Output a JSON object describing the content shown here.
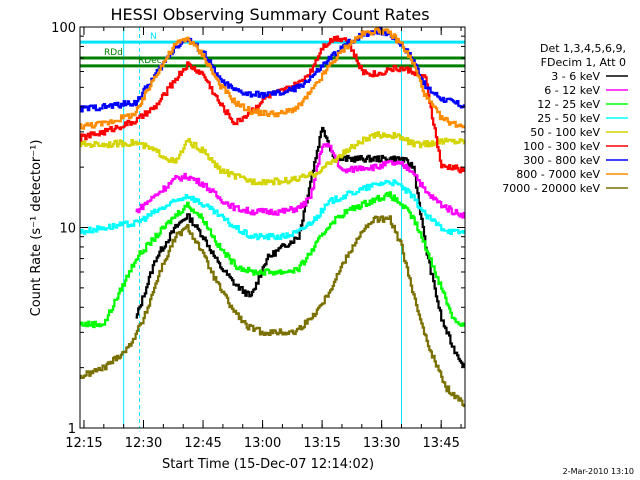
{
  "chart_data": {
    "type": "line",
    "title": "HESSI Observing Summary Count Rates",
    "xlabel": "Start Time (15-Dec-07 12:14:02)",
    "ylabel": "Count Rate (s⁻¹ detector⁻¹)",
    "y_scale": "log",
    "ylim": [
      1,
      100
    ],
    "xlim": [
      "12:14",
      "13:51"
    ],
    "x_ticks": [
      "12:15",
      "12:30",
      "12:45",
      "13:00",
      "13:15",
      "13:30",
      "13:45"
    ],
    "y_ticks": [
      "1",
      "10",
      "100"
    ],
    "grid": false,
    "legend_position": "right",
    "legend_title": [
      "Det 1,3,4,5,6,9,",
      "FDecim 1, Att 0"
    ],
    "series": [
      {
        "name": "3 - 6 keV",
        "color": "#000000",
        "x": [
          "12:28",
          "12:33",
          "12:38",
          "12:41",
          "12:45",
          "12:49",
          "12:53",
          "12:57",
          "13:01",
          "13:05",
          "13:09",
          "13:12",
          "13:15",
          "13:18",
          "13:21",
          "13:25",
          "13:29",
          "13:32",
          "13:35",
          "13:38",
          "13:41",
          "13:45",
          "13:48",
          "13:51"
        ],
        "values": [
          3.5,
          7.0,
          10.0,
          11.5,
          9.0,
          6.5,
          5.2,
          4.5,
          7.0,
          8.0,
          9.0,
          17.0,
          32.0,
          22.0,
          22.0,
          22.0,
          22.0,
          22.0,
          22.0,
          20.0,
          8.0,
          3.5,
          2.5,
          2.0
        ]
      },
      {
        "name": "6 - 12 keV",
        "color": "#ff00ff",
        "x": [
          "12:28",
          "12:33",
          "12:38",
          "12:41",
          "12:45",
          "12:49",
          "12:53",
          "12:57",
          "13:01",
          "13:05",
          "13:09",
          "13:12",
          "13:15",
          "13:17",
          "13:20",
          "13:25",
          "13:29",
          "13:32",
          "13:35",
          "13:38",
          "13:41",
          "13:45",
          "13:48",
          "13:51"
        ],
        "values": [
          12.0,
          14.5,
          17.5,
          18.0,
          16.5,
          14.0,
          12.5,
          12.0,
          12.0,
          12.0,
          12.5,
          14.0,
          26.0,
          25.0,
          19.0,
          20.0,
          20.0,
          21.0,
          20.5,
          19.0,
          15.0,
          13.0,
          12.0,
          11.5
        ]
      },
      {
        "name": "12 - 25 keV",
        "color": "#00ff00",
        "x": [
          "12:14",
          "12:20",
          "12:28",
          "12:33",
          "12:38",
          "12:41",
          "12:45",
          "12:49",
          "12:53",
          "12:57",
          "13:01",
          "13:05",
          "13:09",
          "13:13",
          "13:17",
          "13:21",
          "13:25",
          "13:29",
          "13:32",
          "13:35",
          "13:38",
          "13:41",
          "13:45",
          "13:48",
          "13:51"
        ],
        "values": [
          3.3,
          3.3,
          7.0,
          9.0,
          11.5,
          13.0,
          11.0,
          8.0,
          6.5,
          6.0,
          6.0,
          6.0,
          6.2,
          8.0,
          10.5,
          12.0,
          13.0,
          14.0,
          14.5,
          13.0,
          11.0,
          8.0,
          5.0,
          3.5,
          3.2
        ]
      },
      {
        "name": "25 - 50 keV",
        "color": "#00ffff",
        "x": [
          "12:14",
          "12:20",
          "12:28",
          "12:33",
          "12:38",
          "12:41",
          "12:45",
          "12:49",
          "12:53",
          "12:57",
          "13:01",
          "13:05",
          "13:09",
          "13:13",
          "13:17",
          "13:21",
          "13:25",
          "13:29",
          "13:32",
          "13:35",
          "13:38",
          "13:41",
          "13:45",
          "13:48",
          "13:51"
        ],
        "values": [
          9.5,
          10.0,
          10.5,
          12.0,
          13.5,
          14.5,
          13.0,
          11.5,
          10.0,
          9.0,
          9.0,
          9.0,
          9.5,
          11.0,
          13.5,
          14.5,
          15.5,
          16.5,
          17.0,
          16.0,
          14.0,
          11.5,
          10.0,
          9.5,
          9.5
        ]
      },
      {
        "name": "50 - 100 keV",
        "color": "#d4d400",
        "x": [
          "12:14",
          "12:20",
          "12:28",
          "12:33",
          "12:38",
          "12:41",
          "12:45",
          "12:49",
          "12:53",
          "12:57",
          "13:01",
          "13:05",
          "13:09",
          "13:13",
          "13:17",
          "13:21",
          "13:25",
          "13:29",
          "13:32",
          "13:35",
          "13:38",
          "13:41",
          "13:45",
          "13:48",
          "13:51"
        ],
        "values": [
          26.0,
          26.0,
          26.5,
          24.0,
          21.0,
          27.0,
          24.0,
          19.5,
          18.0,
          17.0,
          17.0,
          17.0,
          17.5,
          18.5,
          21.0,
          24.0,
          27.0,
          29.0,
          29.0,
          28.0,
          26.0,
          26.0,
          27.0,
          27.0,
          27.0
        ]
      },
      {
        "name": "100 - 300 keV",
        "color": "#ff0000",
        "x": [
          "12:14",
          "12:20",
          "12:24",
          "12:28",
          "12:33",
          "12:38",
          "12:41",
          "12:45",
          "12:49",
          "12:53",
          "12:57",
          "13:01",
          "13:05",
          "13:09",
          "13:12",
          "13:15",
          "13:18",
          "13:21",
          "13:25",
          "13:29",
          "13:32",
          "13:35",
          "13:38",
          "13:41",
          "13:45",
          "13:48",
          "13:51"
        ],
        "values": [
          28.0,
          30.0,
          32.0,
          34.0,
          40.0,
          55.0,
          65.0,
          58.0,
          42.0,
          33.0,
          38.0,
          45.0,
          48.0,
          52.0,
          60.0,
          80.0,
          88.0,
          88.0,
          60.0,
          58.0,
          62.0,
          62.0,
          60.0,
          55.0,
          20.0,
          20.0,
          19.0
        ]
      },
      {
        "name": "300 - 800 keV",
        "color": "#0000ff",
        "x": [
          "12:14",
          "12:20",
          "12:28",
          "12:33",
          "12:38",
          "12:41",
          "12:45",
          "12:49",
          "12:53",
          "12:57",
          "13:01",
          "13:05",
          "13:09",
          "13:13",
          "13:17",
          "13:21",
          "13:25",
          "13:29",
          "13:32",
          "13:35",
          "13:38",
          "13:41",
          "13:45",
          "13:48",
          "13:51"
        ],
        "values": [
          39.0,
          40.0,
          42.0,
          58.0,
          80.0,
          87.0,
          75.0,
          55.0,
          48.0,
          46.0,
          46.0,
          47.0,
          50.0,
          58.0,
          70.0,
          82.0,
          92.0,
          96.0,
          92.0,
          82.0,
          68.0,
          50.0,
          44.0,
          42.0,
          40.0
        ]
      },
      {
        "name": "800 - 7000 keV",
        "color": "#ff8c00",
        "x": [
          "12:14",
          "12:20",
          "12:28",
          "12:33",
          "12:38",
          "12:41",
          "12:45",
          "12:49",
          "12:53",
          "12:57",
          "13:01",
          "13:05",
          "13:09",
          "13:13",
          "13:17",
          "13:21",
          "13:25",
          "13:29",
          "13:32",
          "13:35",
          "13:38",
          "13:41",
          "13:45",
          "13:48",
          "13:51"
        ],
        "values": [
          32.0,
          33.0,
          37.0,
          58.0,
          82.0,
          88.0,
          72.0,
          52.0,
          42.0,
          38.0,
          37.0,
          37.0,
          40.0,
          50.0,
          65.0,
          80.0,
          92.0,
          97.0,
          93.0,
          82.0,
          65.0,
          45.0,
          35.0,
          33.0,
          32.0
        ]
      },
      {
        "name": "7000 - 20000 keV",
        "color": "#7a7000",
        "x": [
          "12:14",
          "12:20",
          "12:26",
          "12:30",
          "12:34",
          "12:38",
          "12:41",
          "12:44",
          "12:48",
          "12:52",
          "12:56",
          "13:00",
          "13:04",
          "13:08",
          "13:12",
          "13:16",
          "13:20",
          "13:24",
          "13:28",
          "13:32",
          "13:35",
          "13:38",
          "13:42",
          "13:46",
          "13:51"
        ],
        "values": [
          1.8,
          2.0,
          2.5,
          3.5,
          6.0,
          9.0,
          10.0,
          8.0,
          5.5,
          4.0,
          3.2,
          3.0,
          3.0,
          3.0,
          3.5,
          4.5,
          6.5,
          9.0,
          11.0,
          11.0,
          8.0,
          4.5,
          2.5,
          1.6,
          1.3
        ]
      }
    ],
    "reference_lines": [
      {
        "label": "RDec",
        "color": "#008000",
        "y": 64
      },
      {
        "label": "RDd",
        "color": "#008000",
        "y": 70
      },
      {
        "label": "N",
        "color": "#00e5ff",
        "y": 84
      }
    ],
    "vertical_markers": [
      {
        "x": "12:25",
        "color": "#00e5ff"
      },
      {
        "x": "12:29",
        "color": "#00e5ff"
      },
      {
        "x": "13:35",
        "color": "#00e5ff"
      },
      {
        "x": "13:51",
        "color": "#00e5ff"
      }
    ],
    "footer_stamp": "2-Mar-2010 13:10"
  }
}
